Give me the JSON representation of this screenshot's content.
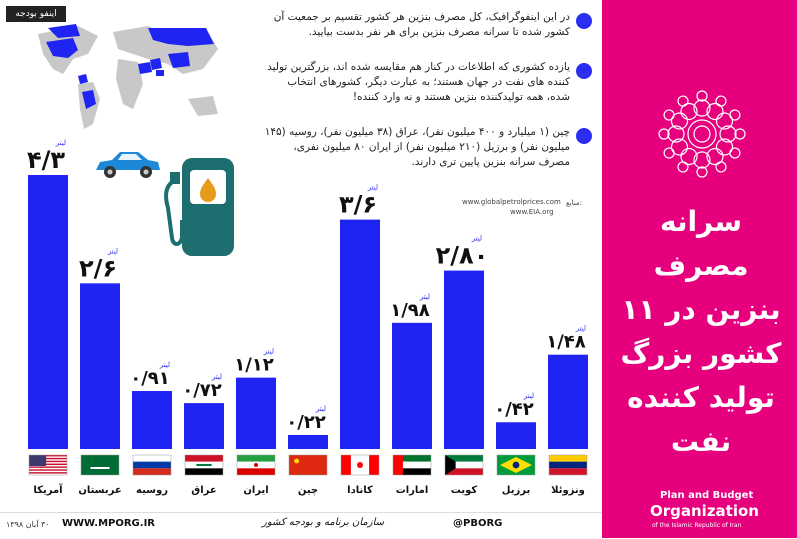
{
  "brand_tag": "اینفو بودجه",
  "intro_points": [
    "در این اینفوگرافیک، کل مصرف بنزین هر کشور تقسیم بر جمعیت آن کشور شده تا سرانه مصرف بنزین برای هر نفر بدست بیایید.",
    "یازده کشوری که اطلاعات در کنار هم مقایسه شده اند، بزرگترین تولید کننده های نفت در جهان هستند؛ به عبارت دیگر، کشورهای انتخاب شده، همه تولیدکننده بنزین هستند و نه وارد کننده!",
    "چین (۱ میلیارد و ۴۰۰ میلیون نفر)، عراق (۳۸ میلیون نفر)، روسیه (۱۴۵ میلیون نفر) و برزیل (۲۱۰ میلیون نفر) از ایران ۸۰ میلیون نفری، مصرف سرانه بنزین پایین تری دارند."
  ],
  "sources": {
    "label": "منابع:",
    "items": [
      "www.globalpetrolprices.com",
      "www.EIA.org"
    ]
  },
  "unit_label": "لیتر",
  "title": "سرانه مصرف بنزین در ۱۱ کشور بزرگ تولید کننده نفت",
  "org": {
    "line1": "Plan and Budget",
    "line2": "Organization",
    "line3": "of the Islamic Republic of Iran"
  },
  "footer": {
    "date": "۳۰ آبان ۱۳۹۸",
    "website": "WWW.MPORG.IR",
    "signature": "سازمان برنامه و بودجه کشور",
    "handle": "@PBORG"
  },
  "colors": {
    "bar": "#1f24f2",
    "accent": "#e6007e",
    "dot": "#2b2ef0",
    "text": "#111111"
  },
  "chart_data": {
    "type": "bar",
    "categories": [
      "آمریکا",
      "عربستان",
      "روسیه",
      "عراق",
      "ایران",
      "چین",
      "کانادا",
      "امارات",
      "کویت",
      "برزیل",
      "ونزوئلا"
    ],
    "value_labels": [
      "۴/۳",
      "۲/۶",
      "۰/۹۱",
      "۰/۷۲",
      "۱/۱۲",
      "۰/۲۲",
      "۳/۶",
      "۱/۹۸",
      "۲/۸۰",
      "۰/۴۲",
      "۱/۴۸"
    ],
    "values": [
      4.3,
      2.6,
      0.91,
      0.72,
      1.12,
      0.22,
      3.6,
      1.98,
      2.8,
      0.42,
      1.48
    ],
    "flags": [
      "usa",
      "saudi",
      "russia",
      "iraq",
      "iran",
      "china",
      "canada",
      "uae",
      "kuwait",
      "brazil",
      "venezuela"
    ],
    "ylim": [
      0,
      4.3
    ]
  }
}
